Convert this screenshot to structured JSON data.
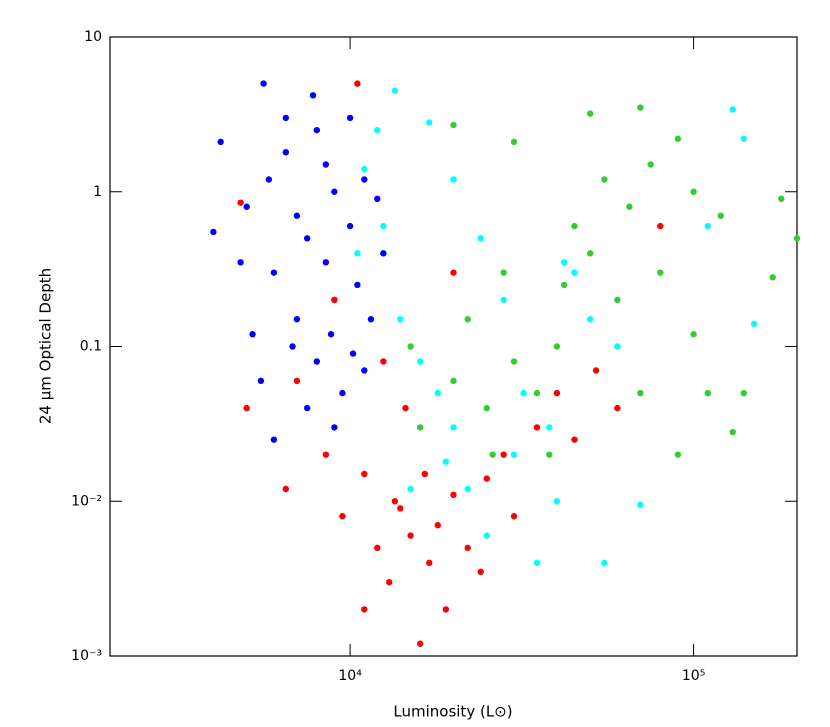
{
  "chart_data": {
    "type": "scatter",
    "xlabel": "Luminosity (L⊙)",
    "ylabel": "24 μm Optical Depth",
    "xlog": true,
    "ylog": true,
    "xlim": [
      2000,
      200000
    ],
    "ylim": [
      0.001,
      10
    ],
    "xticks": [
      {
        "value": 10000,
        "label": "10⁴"
      },
      {
        "value": 100000,
        "label": "10⁵"
      }
    ],
    "yticks": [
      {
        "value": 0.001,
        "label": "10⁻³"
      },
      {
        "value": 0.01,
        "label": "10⁻²"
      },
      0.1,
      1,
      10
    ],
    "series": [
      {
        "color": "#0000ff",
        "x": [
          4000,
          4200,
          5600,
          6500,
          7800,
          8500,
          5000,
          6000,
          7000,
          8000,
          9000,
          10000,
          11000,
          12000,
          9500,
          7500,
          6000,
          5200,
          8500,
          10500,
          11500,
          12500,
          7000,
          9000,
          6500,
          8000,
          10000,
          5500,
          9000,
          11000,
          7500,
          6800,
          8800,
          10200,
          4800,
          5800
        ],
        "values": [
          0.55,
          2.1,
          5.0,
          3.0,
          4.2,
          1.5,
          0.8,
          0.3,
          0.15,
          0.08,
          0.2,
          0.6,
          1.2,
          0.9,
          0.05,
          0.04,
          0.025,
          0.12,
          0.35,
          0.25,
          0.15,
          0.4,
          0.7,
          1.0,
          1.8,
          2.5,
          3.0,
          0.06,
          0.03,
          0.07,
          0.5,
          0.1,
          0.12,
          0.09,
          0.35,
          1.2
        ]
      },
      {
        "color": "#ff0000",
        "x": [
          4800,
          5000,
          6500,
          7000,
          8500,
          9500,
          10500,
          11000,
          12000,
          13000,
          14000,
          15000,
          16000,
          17000,
          18000,
          19000,
          20000,
          22000,
          25000,
          28000,
          30000,
          35000,
          40000,
          45000,
          52000,
          60000,
          80000,
          12500,
          14500,
          16500,
          20000,
          9000,
          11000,
          24000,
          13500
        ],
        "values": [
          0.85,
          0.04,
          0.012,
          0.06,
          0.02,
          0.008,
          5.0,
          0.015,
          0.005,
          0.003,
          0.009,
          0.006,
          0.0012,
          0.004,
          0.007,
          0.002,
          0.011,
          0.005,
          0.014,
          0.02,
          0.008,
          0.03,
          0.05,
          0.025,
          0.07,
          0.04,
          0.6,
          0.08,
          0.04,
          0.015,
          0.3,
          0.2,
          0.002,
          0.0035,
          0.01
        ]
      },
      {
        "color": "#00ffff",
        "x": [
          11000,
          12000,
          13500,
          17000,
          10500,
          14000,
          16000,
          18000,
          20000,
          22000,
          25000,
          30000,
          35000,
          40000,
          45000,
          50000,
          55000,
          70000,
          60000,
          130000,
          140000,
          150000,
          110000,
          28000,
          24000,
          20000,
          15000,
          19000,
          32000,
          38000,
          42000,
          12500
        ],
        "values": [
          1.4,
          2.5,
          4.5,
          2.8,
          0.4,
          0.15,
          0.08,
          0.05,
          0.03,
          0.012,
          0.006,
          0.02,
          0.004,
          0.01,
          0.3,
          0.15,
          0.004,
          0.0095,
          0.1,
          3.4,
          2.2,
          0.14,
          0.6,
          0.2,
          0.5,
          1.2,
          0.012,
          0.018,
          0.05,
          0.03,
          0.35,
          0.6
        ]
      },
      {
        "color": "#33cc33",
        "x": [
          20000,
          30000,
          50000,
          70000,
          90000,
          100000,
          120000,
          180000,
          200000,
          170000,
          140000,
          130000,
          90000,
          70000,
          60000,
          50000,
          40000,
          35000,
          30000,
          25000,
          20000,
          16000,
          15000,
          22000,
          28000,
          45000,
          55000,
          65000,
          80000,
          100000,
          110000,
          38000,
          26000,
          75000,
          42000
        ],
        "values": [
          2.7,
          2.1,
          3.2,
          3.5,
          2.2,
          1.0,
          0.7,
          0.9,
          0.5,
          0.28,
          0.05,
          0.028,
          0.02,
          0.05,
          0.2,
          0.4,
          0.1,
          0.05,
          0.08,
          0.04,
          0.06,
          0.03,
          0.1,
          0.15,
          0.3,
          0.6,
          1.2,
          0.8,
          0.3,
          0.12,
          0.05,
          0.02,
          0.02,
          1.5,
          0.25
        ]
      }
    ]
  }
}
